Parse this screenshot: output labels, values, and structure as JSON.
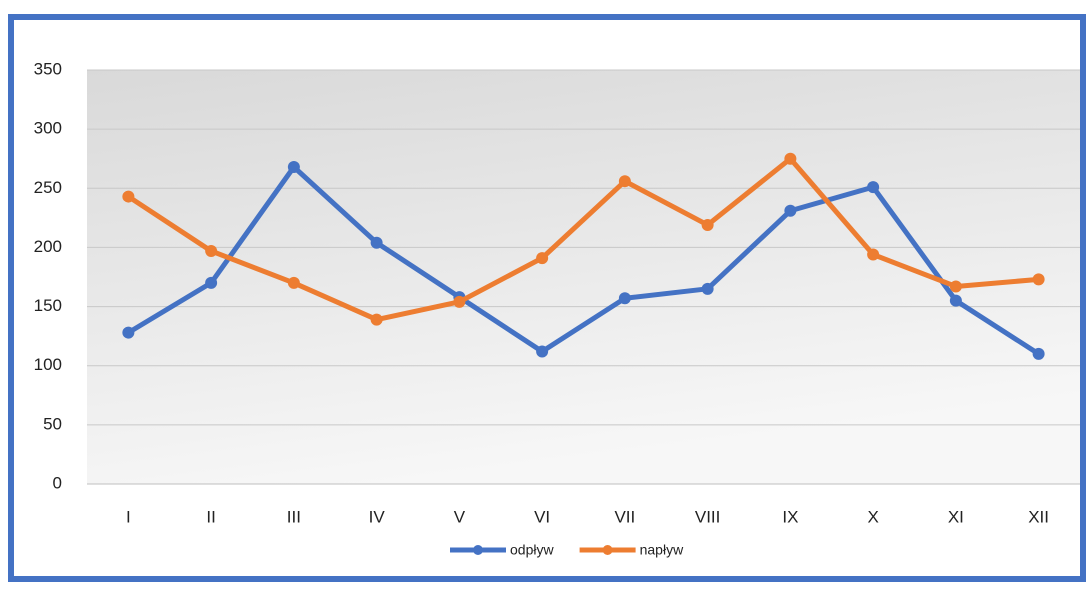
{
  "chart_data": {
    "type": "line",
    "categories": [
      "I",
      "II",
      "III",
      "IV",
      "V",
      "VI",
      "VII",
      "VIII",
      "IX",
      "X",
      "XI",
      "XII"
    ],
    "series": [
      {
        "name": "odpływ",
        "color": "#4472c4",
        "values": [
          128,
          170,
          268,
          204,
          158,
          112,
          157,
          165,
          231,
          251,
          155,
          110
        ]
      },
      {
        "name": "napływ",
        "color": "#ed7d31",
        "values": [
          243,
          197,
          170,
          139,
          154,
          191,
          256,
          219,
          275,
          194,
          167,
          173
        ]
      }
    ],
    "ylim": [
      0,
      350
    ],
    "yticks": [
      0,
      50,
      100,
      150,
      200,
      250,
      300,
      350
    ],
    "grid": true,
    "legend": "bottom"
  }
}
